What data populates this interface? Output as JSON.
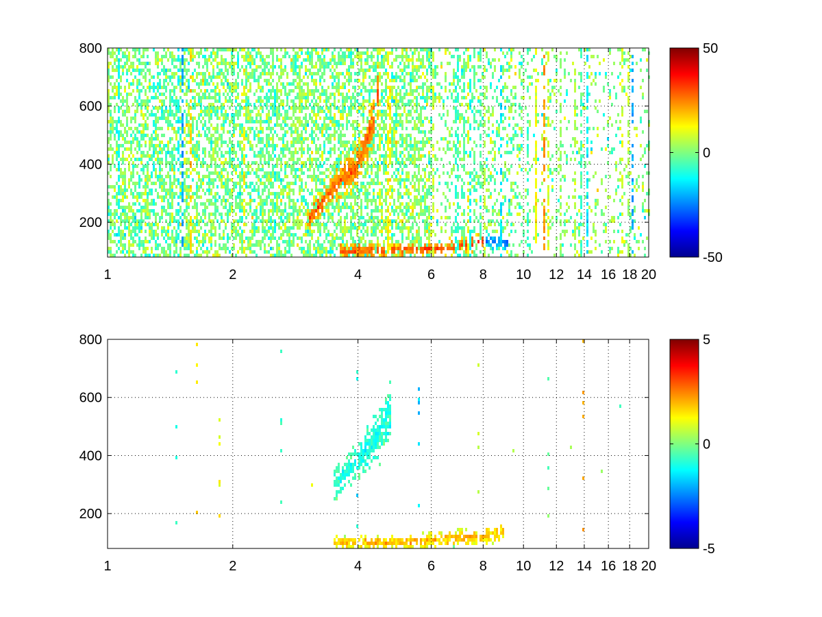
{
  "chart_data": [
    {
      "type": "heatmap",
      "title": "",
      "xlabel": "",
      "ylabel": "",
      "x_scale": "log",
      "xlim": [
        1,
        20
      ],
      "ylim": [
        80,
        800
      ],
      "x_ticks": [
        1,
        2,
        4,
        6,
        8,
        10,
        12,
        14,
        16,
        18,
        20
      ],
      "x_tick_labels": [
        "1",
        "2",
        "4",
        "6",
        "8",
        "10",
        "12",
        "14",
        "16",
        "18",
        "20"
      ],
      "y_ticks": [
        200,
        400,
        600,
        800
      ],
      "y_tick_labels": [
        "200",
        "400",
        "600",
        "800"
      ],
      "grid": true,
      "colormap": "jet",
      "clim": [
        -50,
        50
      ],
      "colorbar_ticks": [
        -50,
        0,
        50
      ],
      "colorbar_tick_labels": [
        "-50",
        "0",
        "50"
      ],
      "features": [
        {
          "kind": "ridge",
          "points": [
            [
              3.0,
              200
            ],
            [
              3.5,
              320
            ],
            [
              4.0,
              400
            ],
            [
              4.4,
              560
            ],
            [
              4.5,
              700
            ]
          ],
          "value": 28
        },
        {
          "kind": "ridge",
          "points": [
            [
              3.6,
              100
            ],
            [
              5.0,
              105
            ],
            [
              6.5,
              110
            ],
            [
              7.5,
              125
            ],
            [
              8.0,
              135
            ]
          ],
          "value": 30
        },
        {
          "kind": "ridge",
          "points": [
            [
              8.0,
              130
            ],
            [
              9.2,
              130
            ]
          ],
          "value": -25
        }
      ]
    },
    {
      "type": "heatmap",
      "title": "",
      "xlabel": "",
      "ylabel": "",
      "x_scale": "log",
      "xlim": [
        1,
        20
      ],
      "ylim": [
        80,
        800
      ],
      "x_ticks": [
        1,
        2,
        4,
        6,
        8,
        10,
        12,
        14,
        16,
        18,
        20
      ],
      "x_tick_labels": [
        "1",
        "2",
        "4",
        "6",
        "8",
        "10",
        "12",
        "14",
        "16",
        "18",
        "20"
      ],
      "y_ticks": [
        200,
        400,
        600,
        800
      ],
      "y_tick_labels": [
        "200",
        "400",
        "600",
        "800"
      ],
      "grid": true,
      "colormap": "jet",
      "clim": [
        -5,
        5
      ],
      "colorbar_ticks": [
        -5,
        0,
        5
      ],
      "colorbar_tick_labels": [
        "-5",
        "0",
        "5"
      ],
      "features": [
        {
          "kind": "ridge",
          "points": [
            [
              3.5,
              300
            ],
            [
              4.0,
              380
            ],
            [
              4.5,
              480
            ],
            [
              4.8,
              560
            ]
          ],
          "value": -1
        },
        {
          "kind": "ridge",
          "points": [
            [
              3.5,
              100
            ],
            [
              5.0,
              100
            ],
            [
              6.0,
              110
            ],
            [
              7.5,
              120
            ],
            [
              9.0,
              130
            ]
          ],
          "value": 2
        }
      ]
    }
  ]
}
